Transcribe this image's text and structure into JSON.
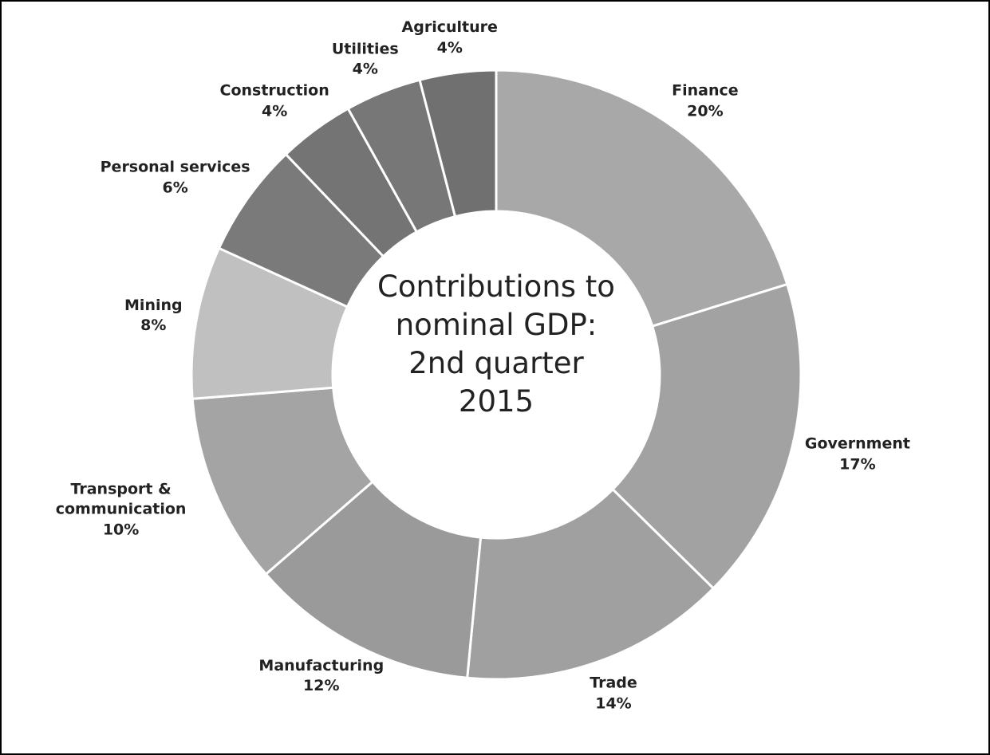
{
  "chart_data": {
    "type": "donut",
    "title": "Contributions to nominal GDP: 2nd quarter 2015",
    "categories": [
      "Finance",
      "Government",
      "Trade",
      "Manufacturing",
      "Transport & communication",
      "Mining",
      "Personal services",
      "Construction",
      "Utilities",
      "Agriculture"
    ],
    "values": [
      20,
      17,
      14,
      12,
      10,
      8,
      6,
      4,
      4,
      4
    ],
    "value_labels": [
      "20%",
      "17%",
      "14%",
      "12%",
      "10%",
      "8%",
      "6%",
      "4%",
      "4%",
      "4%"
    ],
    "colors": [
      "#a8a8a8",
      "#a2a2a2",
      "#a0a0a0",
      "#9a9a9a",
      "#a4a4a4",
      "#c0c0c0",
      "#7a7a7a",
      "#747474",
      "#777777",
      "#707070"
    ]
  }
}
